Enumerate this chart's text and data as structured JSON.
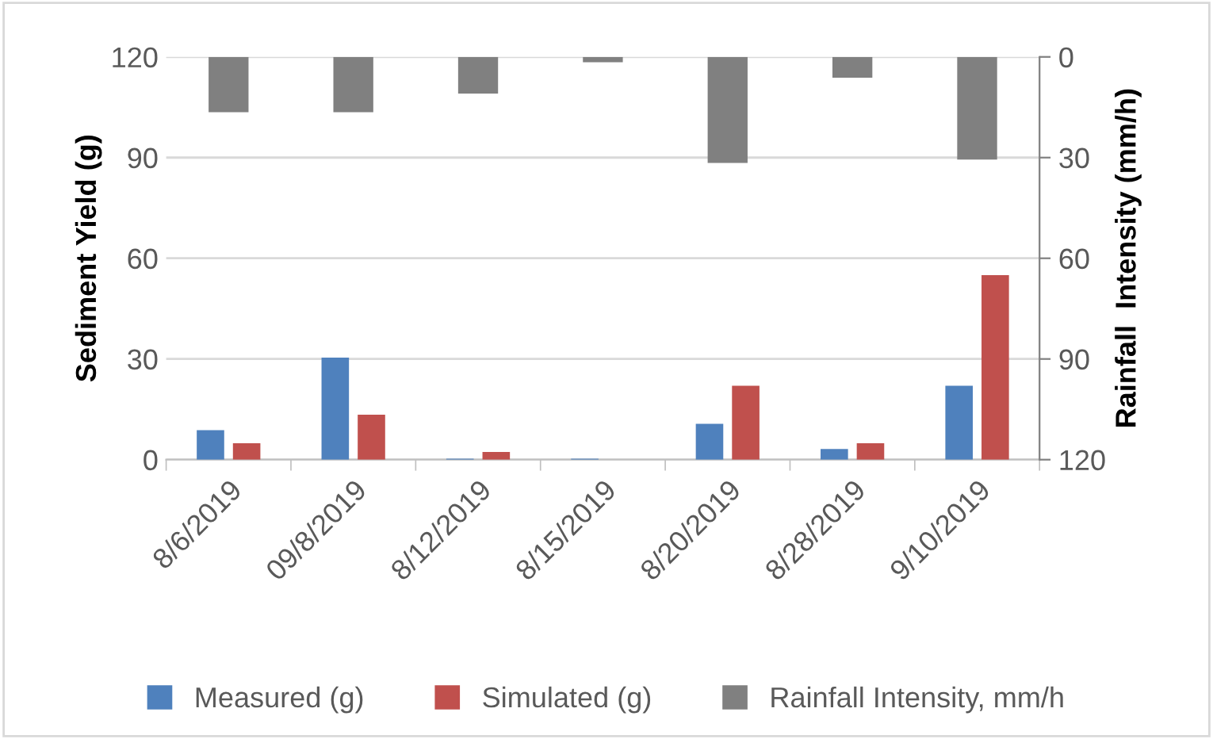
{
  "chart_data": {
    "type": "bar",
    "ylabel": "Sediment Yield (g)",
    "y2label": "Rainfall  Intensity (mm/h)",
    "categories": [
      "8/6/2019",
      "09/8/2019",
      "8/12/2019",
      "8/15/2019",
      "8/20/2019",
      "8/28/2019",
      "9/10/2019"
    ],
    "series": [
      {
        "name": "Measured (g)",
        "color": "#4f81bd",
        "values": [
          8.8,
          30.4,
          0.3,
          0.3,
          10.7,
          3.2,
          22.0
        ]
      },
      {
        "name": "Simulated (g)",
        "color": "#c0504d",
        "values": [
          4.9,
          13.4,
          2.3,
          0,
          22.0,
          4.9,
          55.0
        ]
      },
      {
        "name": "Rainfall Intensity, mm/h",
        "color": "#808080",
        "axis": "y2",
        "values": [
          16.5,
          16.5,
          10.9,
          1.6,
          31.6,
          6.2,
          30.6
        ]
      }
    ],
    "ylim": [
      0,
      120
    ],
    "yticks": [
      0,
      30,
      60,
      90,
      120
    ],
    "y2lim": [
      120,
      0
    ],
    "y2ticks": [
      0,
      30,
      60,
      90,
      120
    ],
    "grid": "y",
    "legend": "bottom"
  }
}
